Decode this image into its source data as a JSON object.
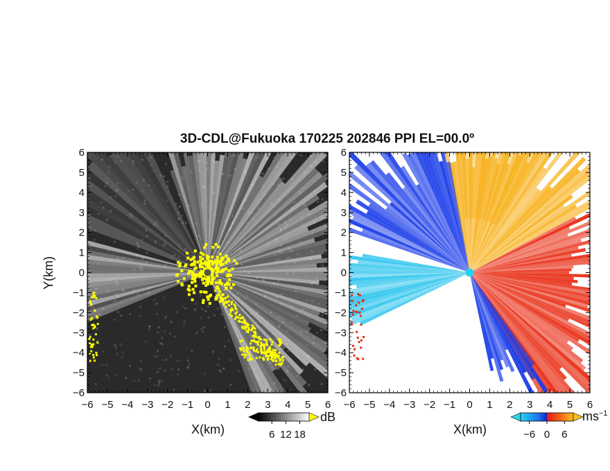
{
  "title": "3D-CDL@Fukuoka 170225 202846 PPI EL=00.0º",
  "chart_data": [
    {
      "type": "heatmap",
      "panel": "left",
      "quantity": "signal intensity",
      "xlabel": "X(km)",
      "ylabel": "Y(km)",
      "xlim": [
        -6,
        6
      ],
      "ylim": [
        -6,
        6
      ],
      "xticks": [
        "−6",
        "−5",
        "−4",
        "−3",
        "−2",
        "−1",
        "0",
        "1",
        "2",
        "3",
        "4",
        "5",
        "6"
      ],
      "yticks": [
        "6",
        "5",
        "4",
        "3",
        "2",
        "1",
        "0",
        "−1",
        "−2",
        "−3",
        "−4",
        "−5",
        "−6"
      ],
      "colorbar": {
        "unit": "dB",
        "ticks": [
          "6",
          "12",
          "18"
        ],
        "tick_values": [
          6,
          12,
          18
        ],
        "range": [
          0,
          22
        ],
        "colormap": "grayscale",
        "over_color": "#ffff00"
      },
      "radar_center": [
        0,
        0
      ]
    },
    {
      "type": "heatmap",
      "panel": "right",
      "quantity": "radial velocity",
      "xlabel": "X(km)",
      "xlim": [
        -6,
        6
      ],
      "ylim": [
        -6,
        6
      ],
      "xticks": [
        "−6",
        "−5",
        "−4",
        "−3",
        "−2",
        "−1",
        "0",
        "1",
        "2",
        "3",
        "4",
        "5",
        "6"
      ],
      "yticks": [
        "6",
        "5",
        "4",
        "3",
        "2",
        "1",
        "0",
        "−1",
        "−2",
        "−3",
        "−4",
        "−5",
        "−6"
      ],
      "colorbar": {
        "unit": "ms",
        "unit_superscript": "−1",
        "ticks": [
          "−6",
          "0",
          "6"
        ],
        "tick_values": [
          -6,
          0,
          6
        ],
        "range": [
          -9,
          9
        ],
        "colormap": "cyan-blue-red-orange"
      },
      "radar_center": [
        0,
        0
      ]
    }
  ],
  "colors": {
    "left_background": "#2a2a2a",
    "left_echo": "#f2f2f2",
    "left_saturated": "#ffff00",
    "right_background": "#ffffff",
    "approaching_strong": "#1538e8",
    "approaching_weak": "#2bc4ee",
    "receding_strong": "#e82b12",
    "receding_weak": "#f7b21e",
    "radar_marker_right": "#22d4ee",
    "radar_marker_left": "#555555"
  }
}
